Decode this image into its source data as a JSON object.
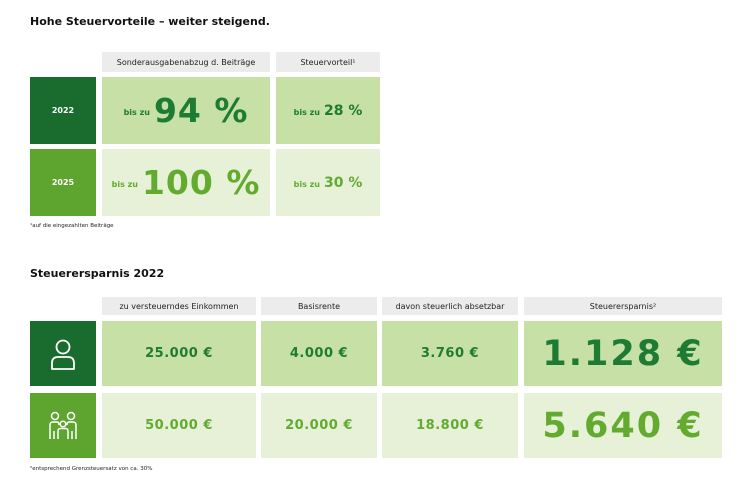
{
  "section1": {
    "title": "Hohe Steuervorteile – weiter steigend.",
    "col_headers": [
      "Sonderausgabenabzug d. Beiträge",
      "Steuervorteil¹"
    ],
    "rows": [
      {
        "year": "2022",
        "prefix": "bis zu",
        "deduction": "94 %",
        "benefit_prefix": "bis zu",
        "benefit": "28 %"
      },
      {
        "year": "2025",
        "prefix": "bis zu",
        "deduction": "100 %",
        "benefit_prefix": "bis zu",
        "benefit": "30 %"
      }
    ],
    "footnote": "¹auf die eingezahlten Beiträge"
  },
  "section2": {
    "title": "Steuerersparnis 2022",
    "col_headers": [
      "zu versteuerndes Einkommen",
      "Basisrente",
      "davon steuerlich absetzbar",
      "Steuerersparnis²"
    ],
    "rows": [
      {
        "icon": "single-person-icon",
        "income": "25.000 €",
        "basisrente": "4.000 €",
        "deductible": "3.760 €",
        "savings": "1.128 €"
      },
      {
        "icon": "family-icon",
        "income": "50.000 €",
        "basisrente": "20.000 €",
        "deductible": "18.800 €",
        "savings": "5.640 €"
      }
    ],
    "footnote": "²entsprechend Grenzsteuersatz von ca. 30%"
  },
  "colors": {
    "dark_green": "#196b2e",
    "mid_green": "#5ea52f",
    "light_green": "#c6e0a5",
    "pale_green": "#e6f1d8",
    "header_gray": "#ececec"
  }
}
